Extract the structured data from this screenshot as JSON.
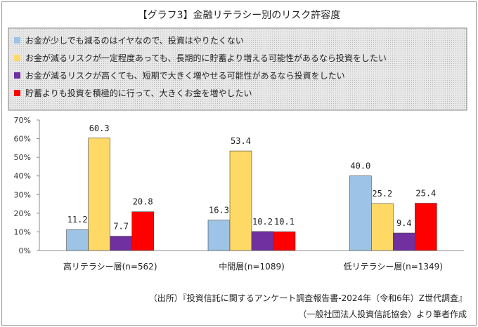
{
  "chart_data": {
    "type": "bar",
    "title": "【グラフ3】金融リテラシー別のリスク許容度",
    "categories": [
      "高リテラシー層(n=562)",
      "中間層(n=1089)",
      "低リテラシー層(n=1349)"
    ],
    "series": [
      {
        "name": "お金が少しでも減るのはイヤなので、投資はやりたくない",
        "values": [
          11.2,
          16.3,
          40.0
        ],
        "labels": [
          "11.2",
          "16.3",
          "40.0"
        ],
        "color": "#9dc3e6"
      },
      {
        "name": "お金が減るリスクが一定程度あっても、長期的に貯蓄より増える可能性があるなら投資をしたい",
        "values": [
          60.3,
          53.4,
          25.2
        ],
        "labels": [
          "60.3",
          "53.4",
          "25.2"
        ],
        "color": "#ffd966"
      },
      {
        "name": "お金が減るリスクが高くても、短期で大きく増やせる可能性があるなら投資をしたい",
        "values": [
          7.7,
          10.2,
          9.4
        ],
        "labels": [
          "7.7",
          "10.2",
          "9.4"
        ],
        "color": "#7030a0"
      },
      {
        "name": "貯蓄よりも投資を積極的に行って、大きくお金を増やしたい",
        "values": [
          20.8,
          10.1,
          25.4
        ],
        "labels": [
          "20.8",
          "10.1",
          "25.4"
        ],
        "color": "#ff0000"
      }
    ],
    "yticks": [
      "0%",
      "10%",
      "20%",
      "30%",
      "40%",
      "50%",
      "60%",
      "70%"
    ],
    "ylim": [
      0,
      70
    ],
    "grid": false,
    "legend_position": "top"
  },
  "source": {
    "line1": "（出所）『投資信託に関するアンケート調査報告書-2024年（令和6年）Z世代調査』",
    "line2": "（一般社団法人投資信託協会）より筆者作成"
  }
}
